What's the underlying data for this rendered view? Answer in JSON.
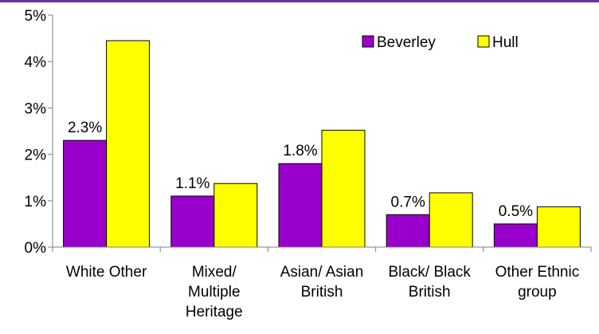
{
  "chart_data": {
    "type": "bar",
    "categories": [
      [
        "White Other"
      ],
      [
        "Mixed/",
        "Multiple",
        "Heritage"
      ],
      [
        "Asian/ Asian",
        "British"
      ],
      [
        "Black/ Black",
        "British"
      ],
      [
        "Other Ethnic",
        "group"
      ]
    ],
    "series": [
      {
        "name": "Beverley",
        "values": [
          2.3,
          1.1,
          1.8,
          0.7,
          0.5
        ],
        "color": "#9900CC",
        "data_labels": [
          "2.3%",
          "1.1%",
          "1.8%",
          "0.7%",
          "0.5%"
        ]
      },
      {
        "name": "Hull",
        "values": [
          4.45,
          1.37,
          2.52,
          1.17,
          0.87
        ],
        "color": "#FFFF00"
      }
    ],
    "ylim": [
      0,
      5
    ],
    "yticks": [
      {
        "value": 0,
        "label": "0%"
      },
      {
        "value": 1,
        "label": "1%"
      },
      {
        "value": 2,
        "label": "2%"
      },
      {
        "value": 3,
        "label": "3%"
      },
      {
        "value": 4,
        "label": "4%"
      },
      {
        "value": 5,
        "label": "5%"
      }
    ],
    "grid": false,
    "legend_position": "top-right",
    "top_rule_color": "#7030A0"
  }
}
